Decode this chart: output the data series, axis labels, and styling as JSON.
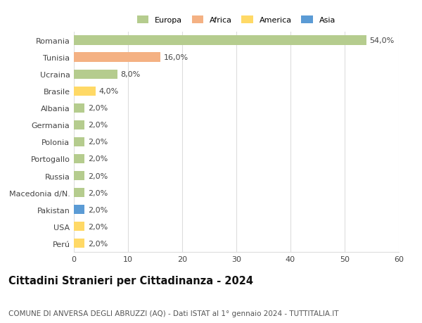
{
  "countries": [
    "Romania",
    "Tunisia",
    "Ucraina",
    "Brasile",
    "Albania",
    "Germania",
    "Polonia",
    "Portogallo",
    "Russia",
    "Macedonia d/N.",
    "Pakistan",
    "USA",
    "Perú"
  ],
  "values": [
    54.0,
    16.0,
    8.0,
    4.0,
    2.0,
    2.0,
    2.0,
    2.0,
    2.0,
    2.0,
    2.0,
    2.0,
    2.0
  ],
  "bar_colors": [
    "#b5cc8e",
    "#f4b183",
    "#b5cc8e",
    "#ffd966",
    "#b5cc8e",
    "#b5cc8e",
    "#b5cc8e",
    "#b5cc8e",
    "#b5cc8e",
    "#b5cc8e",
    "#5b9bd5",
    "#ffd966",
    "#ffd966"
  ],
  "legend_labels": [
    "Europa",
    "Africa",
    "America",
    "Asia"
  ],
  "legend_colors": [
    "#b5cc8e",
    "#f4b183",
    "#ffd966",
    "#5b9bd5"
  ],
  "title": "Cittadini Stranieri per Cittadinanza - 2024",
  "subtitle": "COMUNE DI ANVERSA DEGLI ABRUZZI (AQ) - Dati ISTAT al 1° gennaio 2024 - TUTTITALIA.IT",
  "xlim": [
    0,
    60
  ],
  "xticks": [
    0,
    10,
    20,
    30,
    40,
    50,
    60
  ],
  "background_color": "#ffffff",
  "grid_color": "#dddddd",
  "bar_height": 0.55,
  "label_fontsize": 8,
  "tick_fontsize": 8,
  "title_fontsize": 10.5,
  "subtitle_fontsize": 7.5
}
